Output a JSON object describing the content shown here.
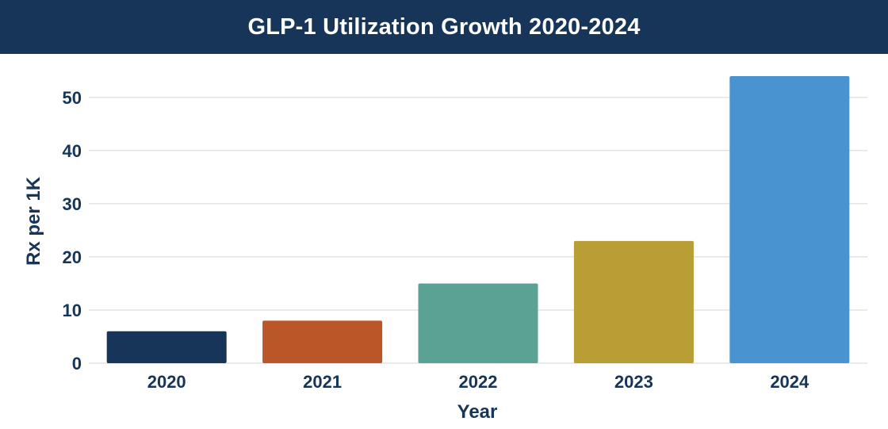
{
  "header": {
    "background": "#163558"
  },
  "chart_data": {
    "type": "bar",
    "title": "GLP-1 Utilization Growth 2020-2024",
    "xlabel": "Year",
    "ylabel": "Rx per 1K",
    "categories": [
      "2020",
      "2021",
      "2022",
      "2023",
      "2024"
    ],
    "values": [
      6,
      8,
      15,
      23,
      54
    ],
    "colors": [
      "#163558",
      "#BB5628",
      "#5BA194",
      "#B99D35",
      "#4A93D1"
    ],
    "ylim": [
      0,
      54
    ],
    "yticks": [
      0,
      10,
      20,
      30,
      40,
      50
    ],
    "grid": true,
    "legend": "none",
    "text_color": "#163558",
    "grid_color": "#d4d4d4"
  }
}
